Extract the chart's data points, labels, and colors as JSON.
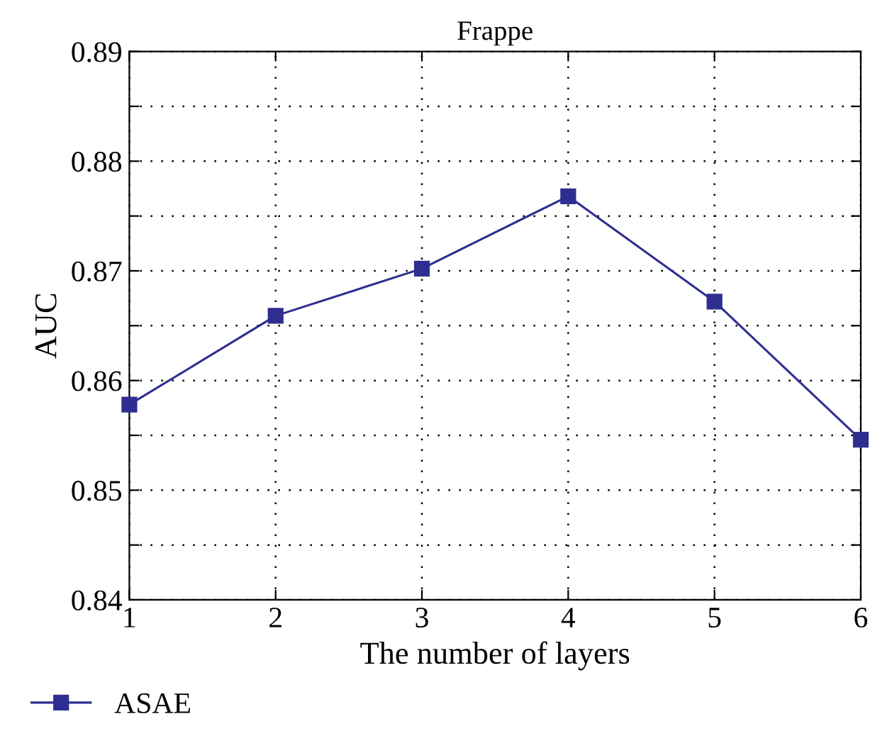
{
  "chart_data": {
    "type": "line",
    "title": "Frappe",
    "xlabel": "The number of layers",
    "ylabel": "AUC",
    "x": [
      1,
      2,
      3,
      4,
      5,
      6
    ],
    "series": [
      {
        "name": "ASAE",
        "color": "#2e2e91",
        "values": [
          0.8578,
          0.8659,
          0.8702,
          0.8768,
          0.8672,
          0.8546
        ]
      }
    ],
    "xlim": [
      1,
      6
    ],
    "xticks": [
      1,
      2,
      3,
      4,
      5,
      6
    ],
    "ylim": [
      0.84,
      0.89
    ],
    "yticks": [
      0.84,
      {
        "value": 0.845,
        "label": null
      },
      0.85,
      {
        "value": 0.855,
        "label": null
      },
      0.86,
      {
        "value": 0.865,
        "label": null
      },
      0.87,
      {
        "value": 0.875,
        "label": null
      },
      0.88,
      {
        "value": 0.885,
        "label": null
      },
      0.89
    ],
    "grid": true,
    "legend": "bottom left",
    "marker": "square",
    "line_style": "solid"
  }
}
